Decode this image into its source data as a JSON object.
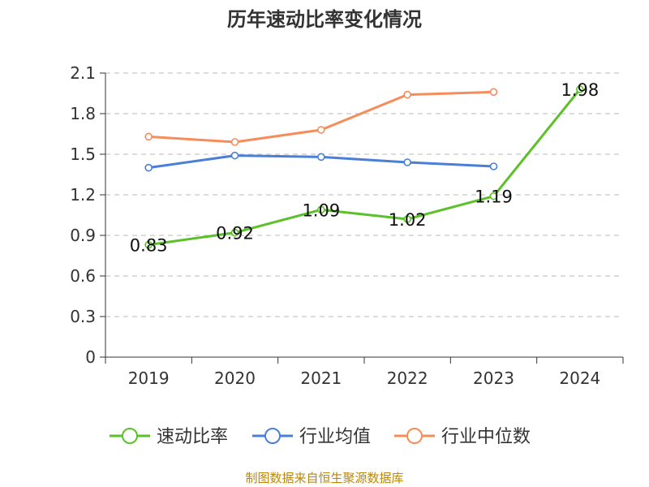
{
  "chart_data": {
    "type": "line",
    "title": "历年速动比率变化情况",
    "categories": [
      "2019",
      "2020",
      "2021",
      "2022",
      "2023",
      "2024"
    ],
    "yticks": [
      "0",
      "0.3",
      "0.6",
      "0.9",
      "1.2",
      "1.5",
      "1.8",
      "2.1"
    ],
    "ylim": [
      0,
      2.1
    ],
    "grid": true,
    "legend_position": "bottom",
    "series": [
      {
        "name": "速动比率",
        "color": "#5bc02a",
        "values": [
          0.83,
          0.92,
          1.09,
          1.02,
          1.19,
          1.98
        ],
        "labels": [
          "0.83",
          "0.92",
          "1.09",
          "1.02",
          "1.19",
          "1.98"
        ]
      },
      {
        "name": "行业均值",
        "color": "#4a7fd8",
        "values": [
          1.4,
          1.49,
          1.48,
          1.44,
          1.41,
          null
        ]
      },
      {
        "name": "行业中位数",
        "color": "#f58c5a",
        "values": [
          1.63,
          1.59,
          1.68,
          1.94,
          1.96,
          null
        ]
      }
    ]
  },
  "source_note": "制图数据来自恒生聚源数据库"
}
